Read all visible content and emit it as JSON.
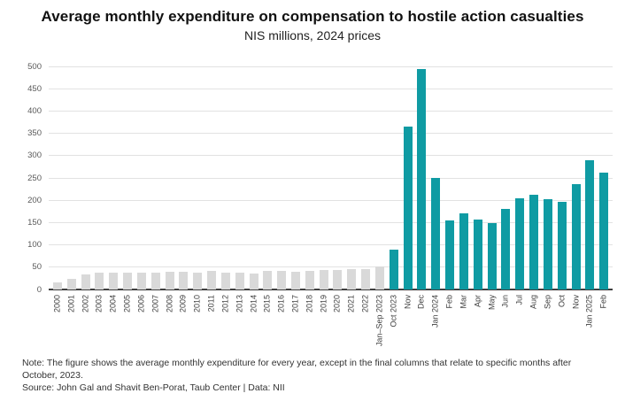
{
  "header": {
    "title": "Average monthly expenditure on compensation to hostile action casualties",
    "subtitle": "NIS millions, 2024 prices"
  },
  "footer": {
    "note": "Note: The figure shows the average monthly expenditure for every year, except in the final columns that relate to specific months after October, 2023.",
    "source": "Source: John Gal and Shavit Ben-Porat, Taub Center  |  Data: NII"
  },
  "colors": {
    "historic_bar": "#d9d9d9",
    "recent_bar": "#0f9ba3",
    "gridline": "#e2e2e2",
    "axis_line": "#3f3f3f",
    "tick_text": "#595959"
  },
  "chart_data": {
    "type": "bar",
    "title": "Average monthly expenditure on compensation to hostile action casualties",
    "subtitle": "NIS millions, 2024 prices",
    "xlabel": "",
    "ylabel": "",
    "ylim": [
      0,
      500
    ],
    "yticks": [
      0,
      50,
      100,
      150,
      200,
      250,
      300,
      350,
      400,
      450,
      500
    ],
    "grid": true,
    "legend": "none",
    "series_groups": {
      "historic": "annual averages 2000 - Jan-Sep 2023 (gray)",
      "recent": "monthly values from Oct 2023 (teal)"
    },
    "points": [
      {
        "label": "2000",
        "value": 16,
        "group": "historic"
      },
      {
        "label": "2001",
        "value": 23,
        "group": "historic"
      },
      {
        "label": "2002",
        "value": 33,
        "group": "historic"
      },
      {
        "label": "2003",
        "value": 38,
        "group": "historic"
      },
      {
        "label": "2004",
        "value": 37,
        "group": "historic"
      },
      {
        "label": "2005",
        "value": 38,
        "group": "historic"
      },
      {
        "label": "2006",
        "value": 38,
        "group": "historic"
      },
      {
        "label": "2007",
        "value": 38,
        "group": "historic"
      },
      {
        "label": "2008",
        "value": 40,
        "group": "historic"
      },
      {
        "label": "2009",
        "value": 40,
        "group": "historic"
      },
      {
        "label": "2010",
        "value": 38,
        "group": "historic"
      },
      {
        "label": "2011",
        "value": 42,
        "group": "historic"
      },
      {
        "label": "2012",
        "value": 37,
        "group": "historic"
      },
      {
        "label": "2013",
        "value": 37,
        "group": "historic"
      },
      {
        "label": "2014",
        "value": 36,
        "group": "historic"
      },
      {
        "label": "2015",
        "value": 41,
        "group": "historic"
      },
      {
        "label": "2016",
        "value": 42,
        "group": "historic"
      },
      {
        "label": "2017",
        "value": 39,
        "group": "historic"
      },
      {
        "label": "2018",
        "value": 42,
        "group": "historic"
      },
      {
        "label": "2019",
        "value": 44,
        "group": "historic"
      },
      {
        "label": "2020",
        "value": 44,
        "group": "historic"
      },
      {
        "label": "2021",
        "value": 45,
        "group": "historic"
      },
      {
        "label": "2022",
        "value": 45,
        "group": "historic"
      },
      {
        "label": "Jan–Sep 2023",
        "value": 52,
        "group": "historic"
      },
      {
        "label": "Oct 2023",
        "value": 90,
        "group": "recent"
      },
      {
        "label": "Nov",
        "value": 365,
        "group": "recent"
      },
      {
        "label": "Dec",
        "value": 495,
        "group": "recent"
      },
      {
        "label": "Jan 2024",
        "value": 250,
        "group": "recent"
      },
      {
        "label": "Feb",
        "value": 155,
        "group": "recent"
      },
      {
        "label": "Mar",
        "value": 170,
        "group": "recent"
      },
      {
        "label": "Apr",
        "value": 156,
        "group": "recent"
      },
      {
        "label": "May",
        "value": 148,
        "group": "recent"
      },
      {
        "label": "Jun",
        "value": 180,
        "group": "recent"
      },
      {
        "label": "Jul",
        "value": 205,
        "group": "recent"
      },
      {
        "label": "Aug",
        "value": 213,
        "group": "recent"
      },
      {
        "label": "Sep",
        "value": 202,
        "group": "recent"
      },
      {
        "label": "Oct",
        "value": 196,
        "group": "recent"
      },
      {
        "label": "Nov",
        "value": 236,
        "group": "recent"
      },
      {
        "label": "Jan 2025",
        "value": 290,
        "group": "recent"
      },
      {
        "label": "Feb",
        "value": 261,
        "group": "recent"
      }
    ]
  }
}
